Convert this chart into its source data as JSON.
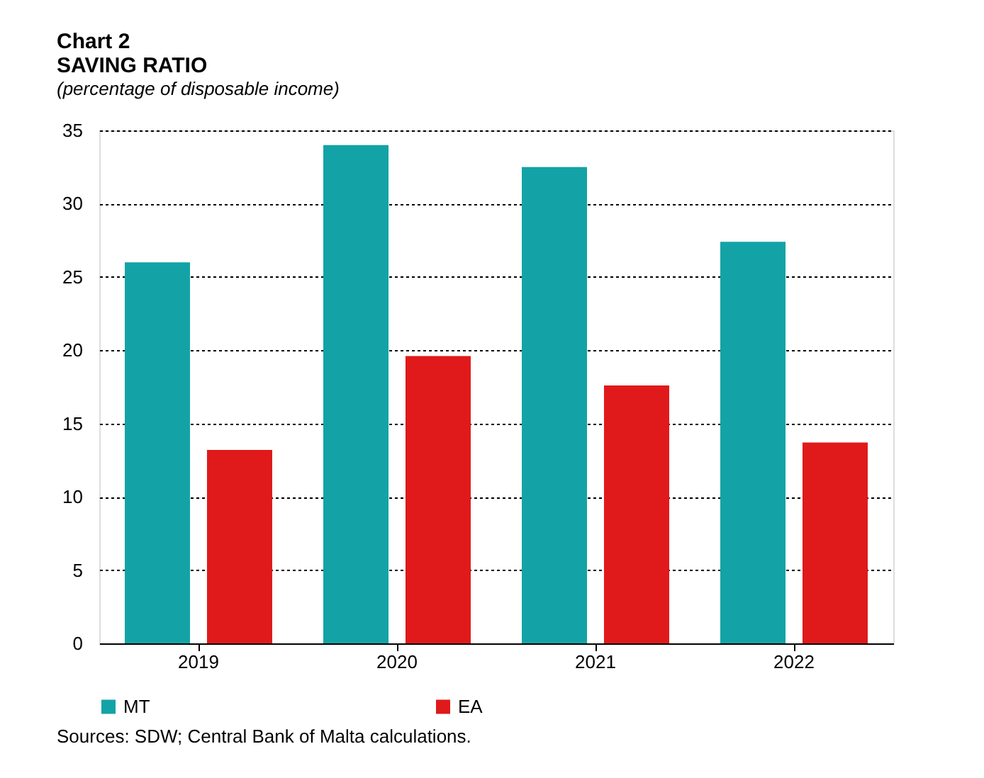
{
  "chart_data": {
    "type": "bar",
    "title": [
      "Chart 2",
      "SAVING RATIO"
    ],
    "subtitle": "(percentage of disposable income)",
    "categories": [
      "2019",
      "2020",
      "2021",
      "2022"
    ],
    "series": [
      {
        "name": "MT",
        "color": "#13a3a6",
        "values": [
          26.0,
          34.0,
          32.5,
          27.4
        ]
      },
      {
        "name": "EA",
        "color": "#e0191b",
        "values": [
          13.2,
          19.6,
          17.6,
          13.7
        ]
      }
    ],
    "ylim": [
      0,
      35
    ],
    "yticks": [
      0,
      5,
      10,
      15,
      20,
      25,
      30,
      35
    ],
    "grid": "y",
    "legend": "bottom",
    "annotations": [
      "Sources: SDW; Central Bank of Malta calculations."
    ]
  }
}
